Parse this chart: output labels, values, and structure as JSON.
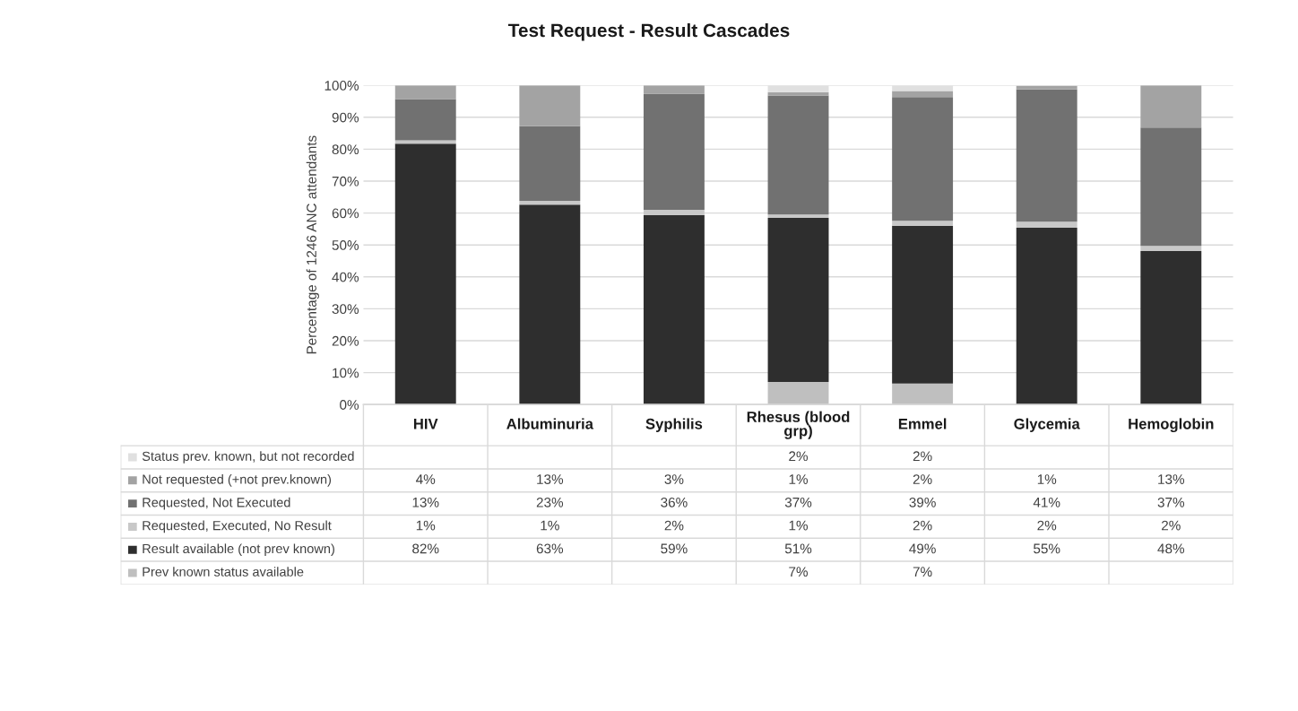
{
  "chart_data": {
    "type": "bar",
    "title": "Test Request - Result Cascades",
    "ylabel": "Percentage of 1246 ANC attendants",
    "categories": [
      "HIV",
      "Albuminuria",
      "Syphilis",
      "Rhesus (blood\ngrp)",
      "Emmel",
      "Glycemia",
      "Hemoglobin"
    ],
    "stacked": true,
    "grid": "y",
    "legend": "bottom",
    "ylim": [
      0,
      100
    ],
    "yticks": [
      {
        "value": 0,
        "label": "0%"
      },
      {
        "value": 10,
        "label": "10%"
      },
      {
        "value": 20,
        "label": "20%"
      },
      {
        "value": 30,
        "label": "30%"
      },
      {
        "value": 40,
        "label": "40%"
      },
      {
        "value": 50,
        "label": "50%"
      },
      {
        "value": 60,
        "label": "60%"
      },
      {
        "value": 70,
        "label": "70%"
      },
      {
        "value": 80,
        "label": "80%"
      },
      {
        "value": 90,
        "label": "90%"
      },
      {
        "value": 100,
        "label": "100%"
      }
    ],
    "series": [
      {
        "name": "Prev known status available",
        "color": "#bfbfbf",
        "values": [
          null,
          null,
          null,
          7.1,
          6.6,
          null,
          null
        ],
        "value_labels": [
          null,
          null,
          null,
          "7%",
          "7%",
          null,
          null
        ]
      },
      {
        "name": "Result available (not prev known)",
        "color": "#2e2e2e",
        "values": [
          81.7,
          62.6,
          59.4,
          51.4,
          49.4,
          55.4,
          48.1
        ],
        "value_labels": [
          "82%",
          "63%",
          "59%",
          "51%",
          "49%",
          "55%",
          "48%"
        ]
      },
      {
        "name": "Requested, Executed, No Result",
        "color": "#c8c8c8",
        "values": [
          1.1,
          1.2,
          1.6,
          1.0,
          1.6,
          1.9,
          1.6
        ],
        "value_labels": [
          "1%",
          "1%",
          "2%",
          "1%",
          "2%",
          "2%",
          "2%"
        ]
      },
      {
        "name": "Requested, Not Executed",
        "color": "#717171",
        "values": [
          12.9,
          23.4,
          36.4,
          37.3,
          38.7,
          41.4,
          37.1
        ],
        "value_labels": [
          "13%",
          "23%",
          "36%",
          "37%",
          "39%",
          "41%",
          "37%"
        ]
      },
      {
        "name": "Not requested (+not prev.known)",
        "color": "#a3a3a3",
        "values": [
          4.3,
          12.8,
          2.6,
          1.1,
          1.9,
          1.1,
          13.2
        ],
        "value_labels": [
          "4%",
          "13%",
          "3%",
          "1%",
          "2%",
          "1%",
          "13%"
        ]
      },
      {
        "name": "Status prev. known, but not recorded",
        "color": "#e0e0e0",
        "values": [
          null,
          null,
          null,
          2.1,
          1.8,
          null,
          null
        ],
        "value_labels": [
          null,
          null,
          null,
          "2%",
          "2%",
          null,
          null
        ]
      }
    ]
  }
}
